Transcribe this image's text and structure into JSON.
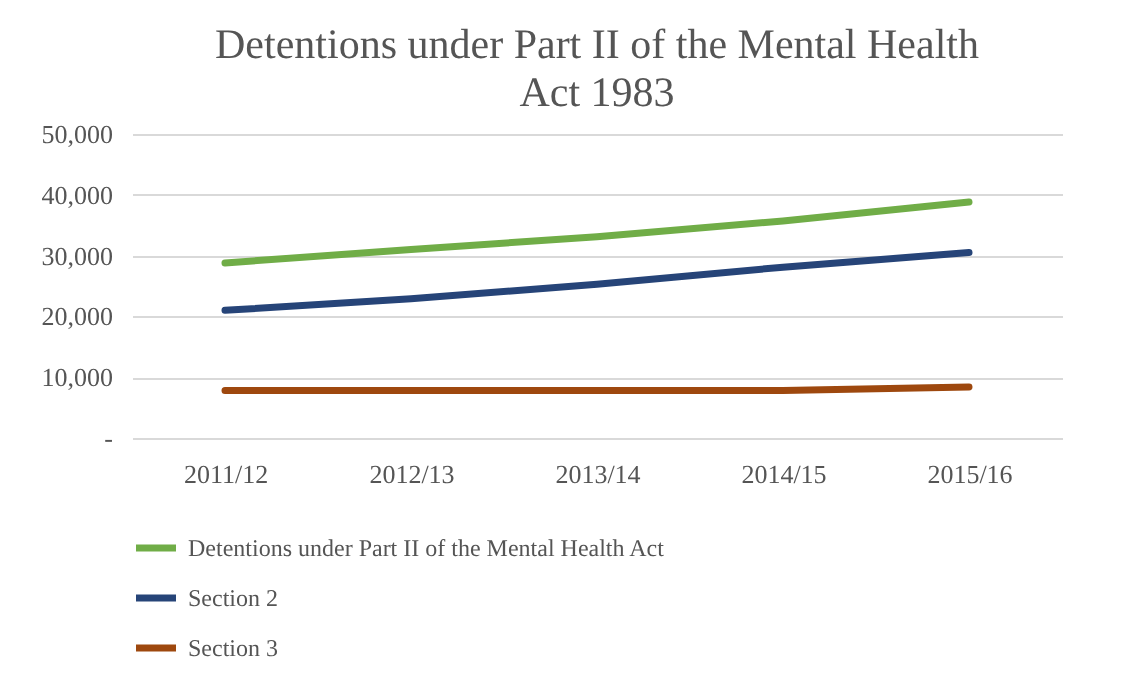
{
  "chart_data": {
    "type": "line",
    "title": "Detentions under Part II of the Mental Health Act 1983",
    "categories": [
      "2011/12",
      "2012/13",
      "2013/14",
      "2014/15",
      "2015/16"
    ],
    "series": [
      {
        "name": "Detentions under Part II of the Mental Health Act",
        "color": "#70ad47",
        "values": [
          28800,
          31000,
          33100,
          35700,
          38800
        ]
      },
      {
        "name": "Section 2",
        "color": "#264478",
        "values": [
          21000,
          22900,
          25300,
          28100,
          30500
        ]
      },
      {
        "name": "Section 3",
        "color": "#9e480e",
        "values": [
          7800,
          7800,
          7800,
          7800,
          8400
        ]
      }
    ],
    "ylim": [
      0,
      50000
    ],
    "yticks": [
      {
        "value": 0,
        "label": "-"
      },
      {
        "value": 10000,
        "label": "10,000"
      },
      {
        "value": 20000,
        "label": "20,000"
      },
      {
        "value": 30000,
        "label": "30,000"
      },
      {
        "value": 40000,
        "label": "40,000"
      },
      {
        "value": 50000,
        "label": "50,000"
      }
    ],
    "grid": "y",
    "legend": "bottom",
    "marker": "none",
    "line_style": "solid"
  }
}
